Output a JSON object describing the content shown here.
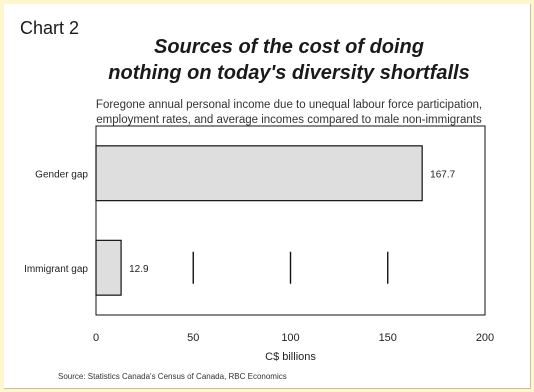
{
  "header": {
    "chart_number": "Chart 2",
    "title_line1": "Sources of the cost of doing",
    "title_line2": "nothing on today's diversity shortfalls",
    "subtitle_line1": "Foregone annual personal income due to unequal labour force participation,",
    "subtitle_line2": "employment rates, and average incomes compared to male non-immigrants"
  },
  "source": "Source:  Statistics Canada's Census of Canada, RBC Economics",
  "colors": {
    "page_background": "#fdf6cf",
    "bar_fill": "#dedede",
    "bar_stroke": "#111111"
  },
  "chart_data": {
    "type": "bar",
    "orientation": "horizontal",
    "categories": [
      "Gender gap",
      "Immigrant gap"
    ],
    "values": [
      167.7,
      12.9
    ],
    "value_labels": [
      "167.7",
      "12.9"
    ],
    "xlabel": "C$ billions",
    "xlim": [
      0,
      200
    ],
    "x_ticks": [
      0,
      50,
      100,
      150,
      200
    ],
    "grid": "vertical short lines at ticks within lower band",
    "legend": "none"
  }
}
